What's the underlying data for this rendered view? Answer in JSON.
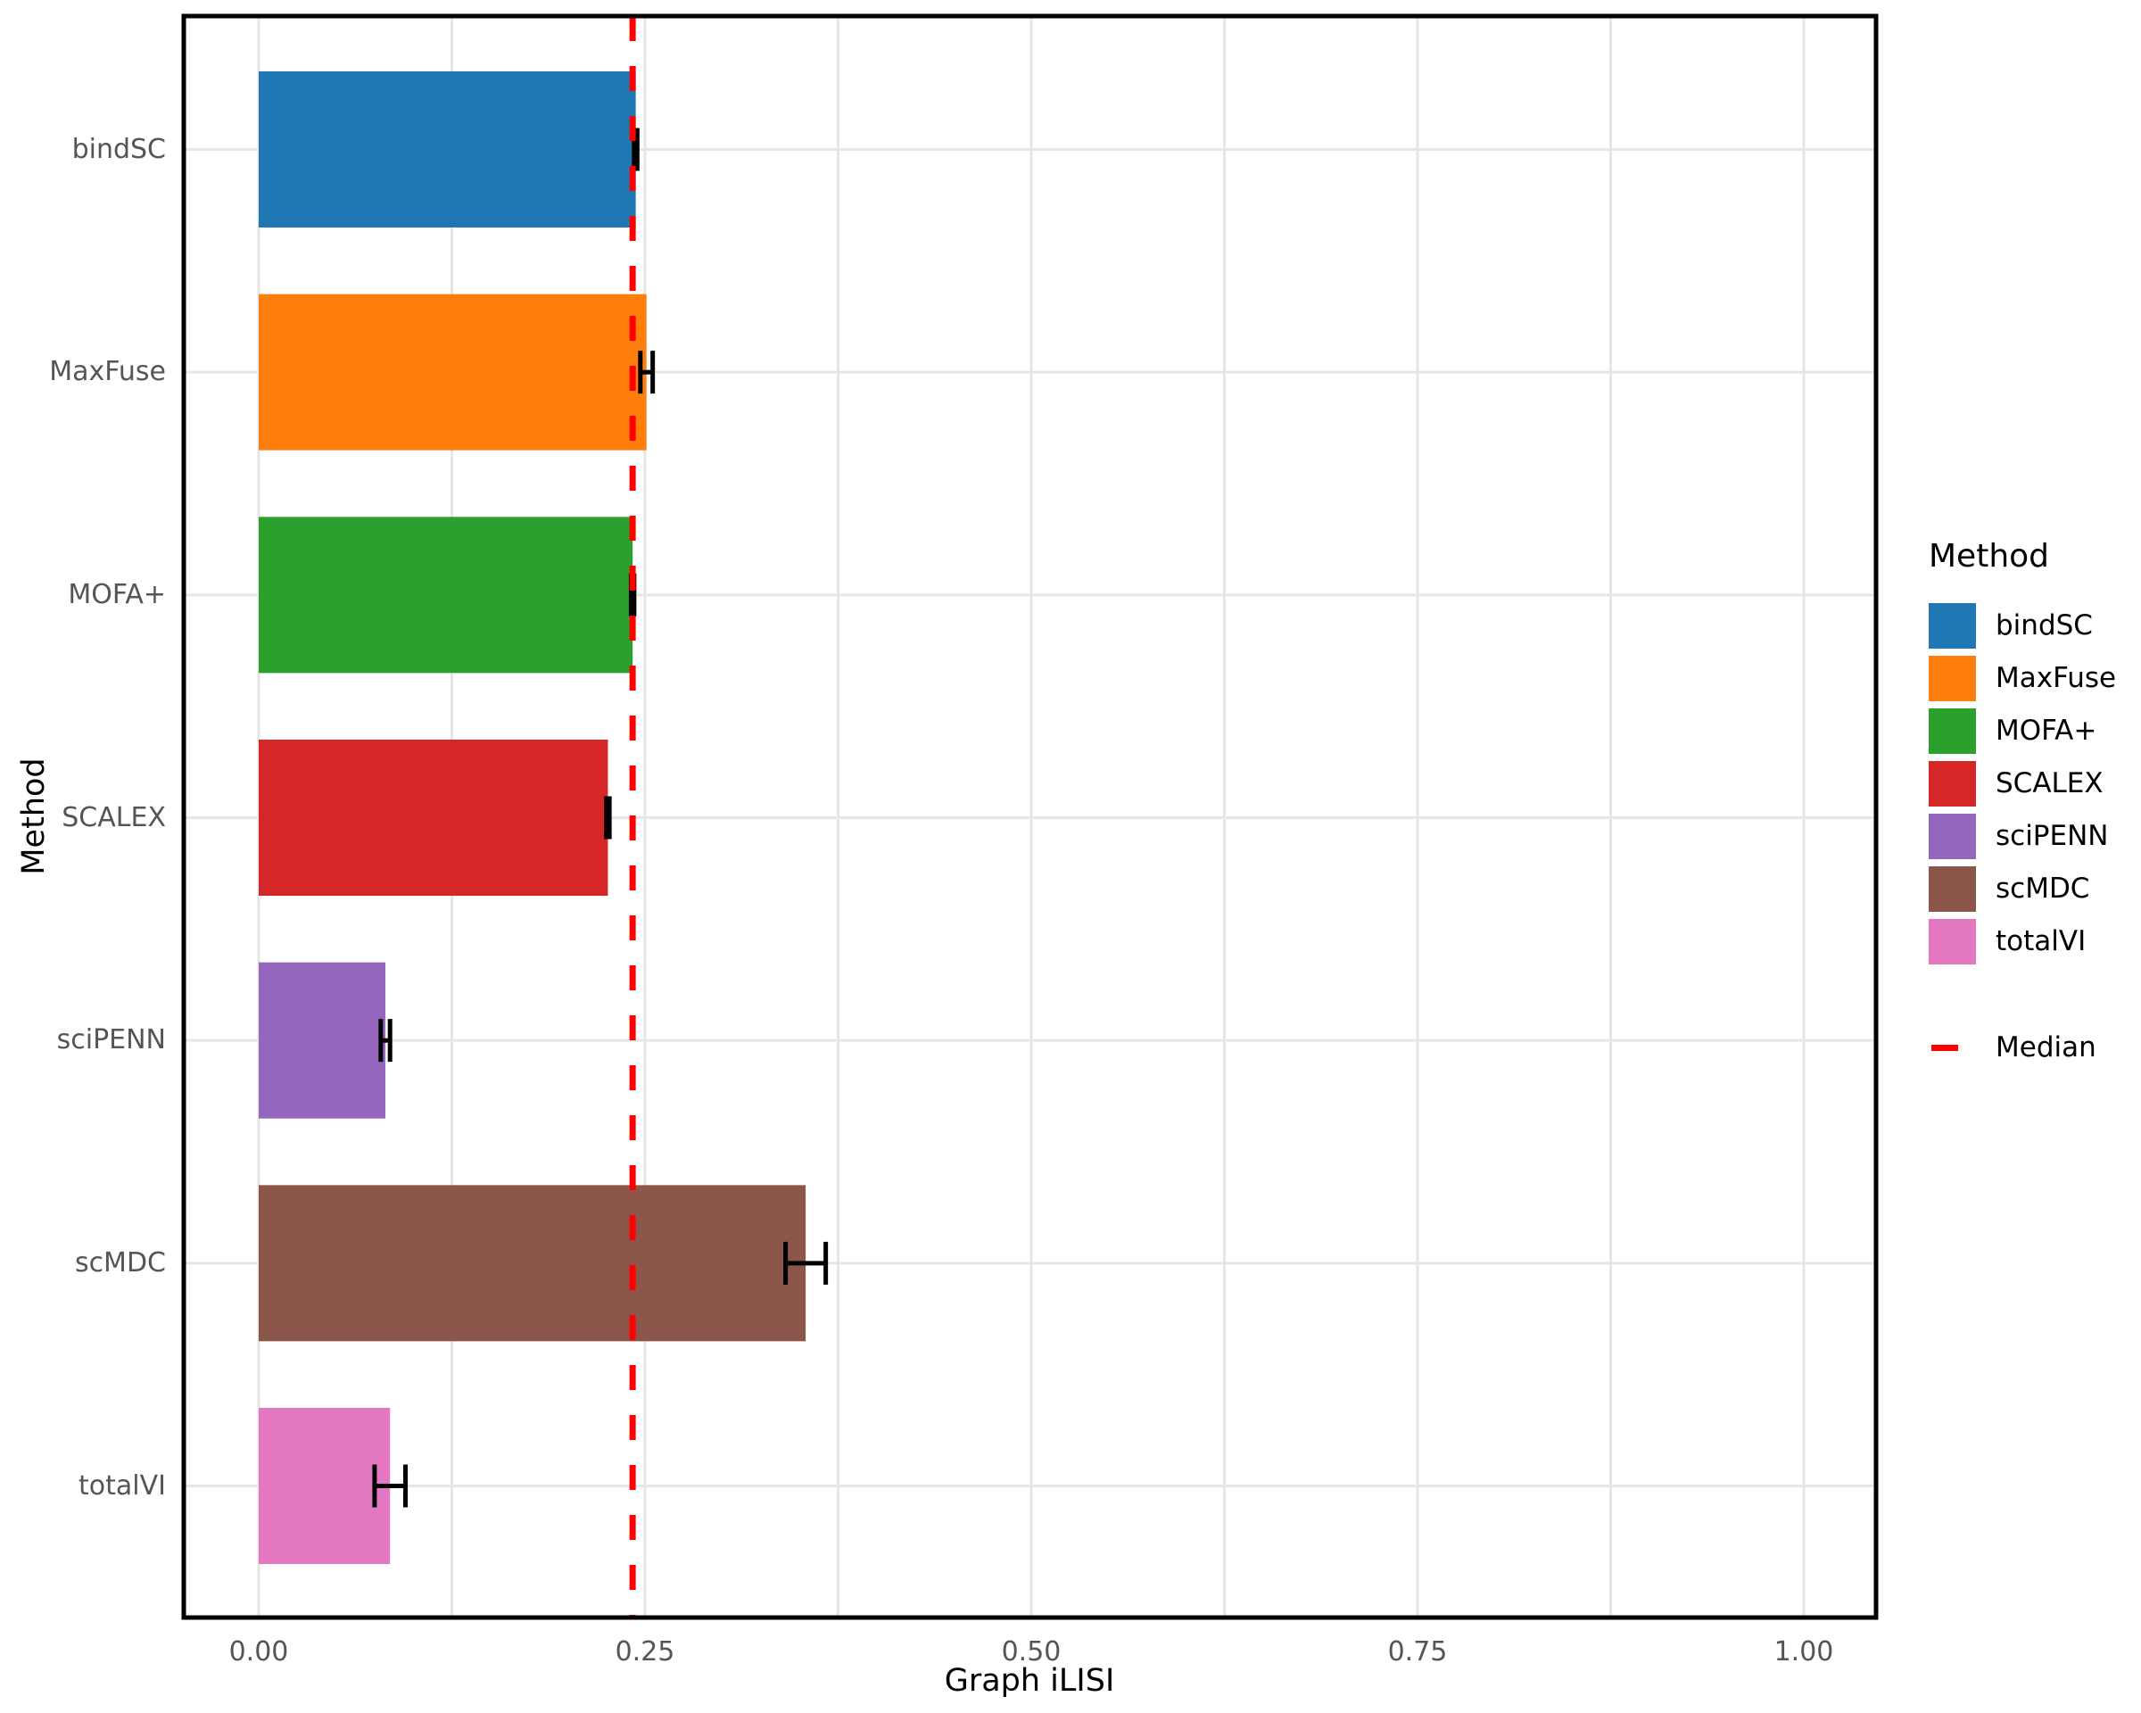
{
  "chart_data": {
    "type": "bar",
    "orientation": "horizontal",
    "title": "",
    "xlabel": "Graph iLISI",
    "ylabel": "Method",
    "categories": [
      "bindSC",
      "MaxFuse",
      "MOFA+",
      "SCALEX",
      "sciPENN",
      "scMDC",
      "totalVI"
    ],
    "values": [
      0.244,
      0.251,
      0.242,
      0.226,
      0.082,
      0.354,
      0.085
    ],
    "errors": [
      0.001,
      0.004,
      0.001,
      0.001,
      0.003,
      0.013,
      0.01
    ],
    "bar_colors": [
      "#1f77b4",
      "#ff7f0e",
      "#2ca02c",
      "#d62728",
      "#9467bd",
      "#8c564b",
      "#e377c2"
    ],
    "x_ticks": [
      0.0,
      0.25,
      0.5,
      0.75,
      1.0
    ],
    "x_tick_labels": [
      "0.00",
      "0.25",
      "0.50",
      "0.75",
      "1.00"
    ],
    "xlim": [
      -0.049,
      1.047
    ],
    "grid": {
      "vertical_step": 0.125,
      "horizontal": "category-centers",
      "color": "#e6e6e6",
      "on": true
    },
    "median_line": {
      "value": 0.242,
      "color": "#ff0000",
      "style": "dashed",
      "label": "Median"
    },
    "error_bar_color": "#000000",
    "legend_position": "right"
  },
  "legend": {
    "title": "Method",
    "items": [
      {
        "label": "bindSC",
        "color": "#1f77b4"
      },
      {
        "label": "MaxFuse",
        "color": "#ff7f0e"
      },
      {
        "label": "MOFA+",
        "color": "#2ca02c"
      },
      {
        "label": "SCALEX",
        "color": "#d62728"
      },
      {
        "label": "sciPENN",
        "color": "#9467bd"
      },
      {
        "label": "scMDC",
        "color": "#8c564b"
      },
      {
        "label": "totalVI",
        "color": "#e377c2"
      }
    ],
    "median_label": "Median",
    "median_color": "#ff0000"
  },
  "styles": {
    "tick_label_color": "#555555",
    "axis_title_color": "#000000",
    "panel_border_color": "#000000",
    "background": "#ffffff"
  }
}
